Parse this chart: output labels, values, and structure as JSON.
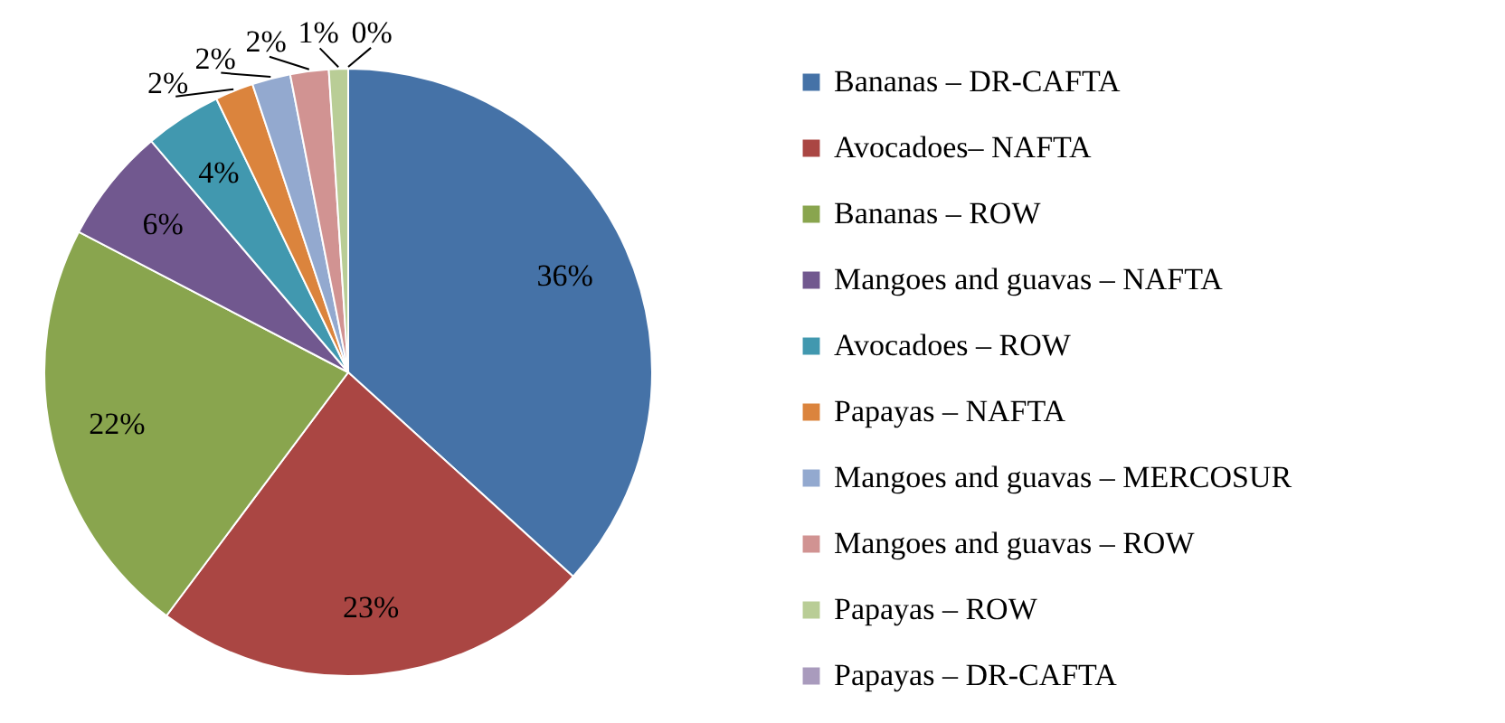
{
  "chart_data": {
    "type": "pie",
    "categories": [
      "Bananas – DR-CAFTA",
      "Avocadoes– NAFTA",
      "Bananas – ROW",
      "Mangoes and guavas – NAFTA",
      "Avocadoes – ROW",
      "Papayas – NAFTA",
      "Mangoes and guavas – MERCOSUR",
      "Mangoes and guavas – ROW",
      "Papayas – ROW",
      "Papayas – DR-CAFTA"
    ],
    "values": [
      36,
      23,
      22,
      6,
      4,
      2,
      2,
      2,
      1,
      0
    ],
    "colors": [
      "#4572a7",
      "#aa4643",
      "#89a54e",
      "#71588f",
      "#4198af",
      "#db843d",
      "#93a9cf",
      "#d19392",
      "#b9cd96",
      "#a99bbd"
    ],
    "value_labels": [
      "36%",
      "23%",
      "22%",
      "6%",
      "4%",
      "2%",
      "2%",
      "2%",
      "1%",
      "0%"
    ],
    "legend": "right"
  }
}
